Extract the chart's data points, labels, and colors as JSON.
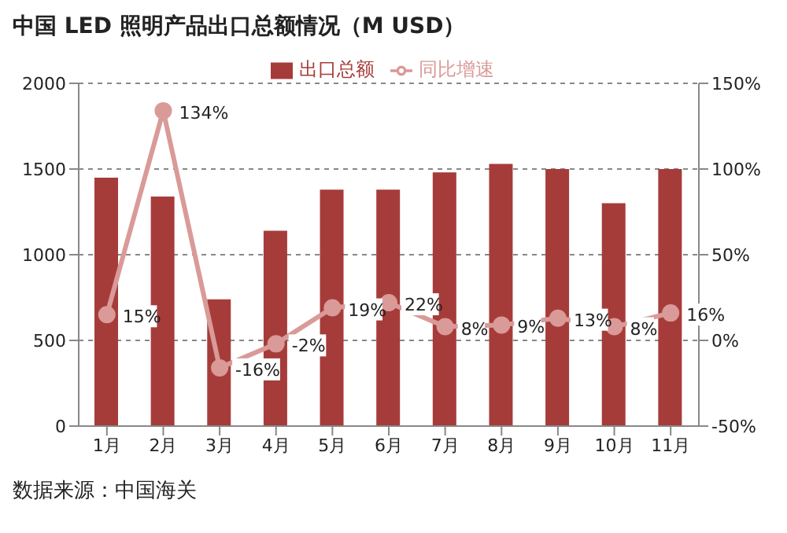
{
  "chart_data": {
    "type": "bar",
    "title": "中国 LED 照明产品出口总额情况（M USD）",
    "categories": [
      "1月",
      "2月",
      "3月",
      "4月",
      "5月",
      "6月",
      "7月",
      "8月",
      "9月",
      "10月",
      "11月"
    ],
    "series": [
      {
        "name": "出口总额",
        "color": "#a63c3a",
        "values": [
          1450,
          1340,
          740,
          1140,
          1380,
          1380,
          1480,
          1530,
          1500,
          1300,
          1500
        ]
      },
      {
        "name": "同比增速",
        "type": "line",
        "axis": "y2",
        "color": "#d99a98",
        "marker": "circle",
        "values": [
          15,
          134,
          -16,
          -2,
          19,
          22,
          8,
          9,
          13,
          8,
          16
        ],
        "value_labels": [
          "15%",
          "134%",
          "-16%",
          "-2%",
          "19%",
          "22%",
          "8%",
          "9%",
          "13%",
          "8%",
          "16%"
        ]
      }
    ],
    "ylim": [
      0,
      2000
    ],
    "yticks": [
      0,
      500,
      1000,
      1500,
      2000
    ],
    "y2lim": [
      -50,
      150
    ],
    "y2ticks": [
      {
        "value": -50,
        "label": "-50%"
      },
      {
        "value": 0,
        "label": "0%"
      },
      {
        "value": 50,
        "label": "50%"
      },
      {
        "value": 100,
        "label": "100%"
      },
      {
        "value": 150,
        "label": "150%"
      }
    ],
    "grid": "y",
    "legend": "top",
    "annotations": [
      "数据来源：中国海关"
    ]
  }
}
